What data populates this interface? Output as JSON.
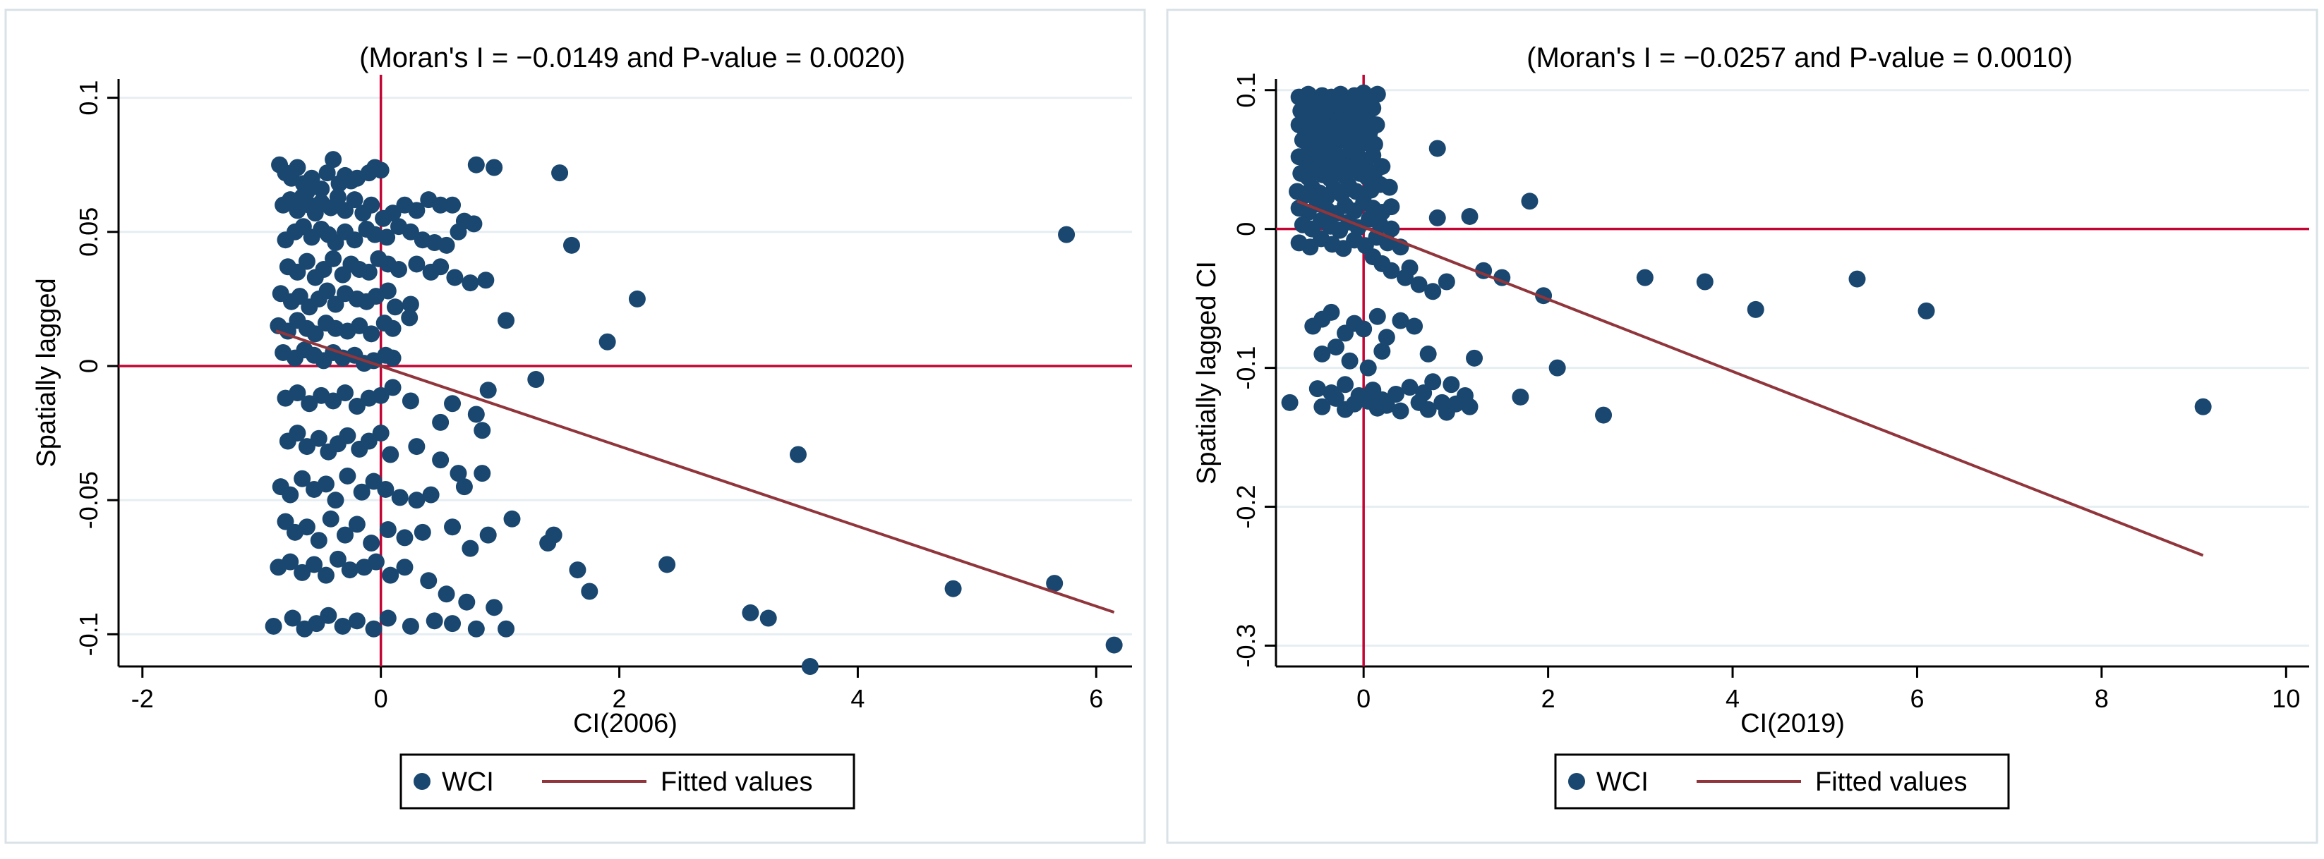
{
  "colors": {
    "marker": "#1a476f",
    "fit_line": "#90353b",
    "ref_line": "#c10534",
    "grid": "#e6eef2",
    "frame": "#000000",
    "panel_border": "#d9e2e7"
  },
  "chart_data": [
    {
      "type": "scatter",
      "title": "(Moran's I = −0.0149 and P-value = 0.0020)",
      "xlabel": "CI(2006)",
      "ylabel": "Spatially lagged",
      "xlim": [
        -2.2,
        6.3
      ],
      "ylim": [
        -0.112,
        0.107
      ],
      "xticks": [
        -2,
        0,
        2,
        4,
        6
      ],
      "xtick_labels": [
        "-2",
        "0",
        "2",
        "4",
        "6"
      ],
      "yticks": [
        -0.1,
        -0.05,
        0,
        0.05,
        0.1
      ],
      "ytick_labels": [
        "-0.1",
        "-0.05",
        "0",
        "0.05",
        "0.1"
      ],
      "grid": true,
      "ref_lines": {
        "x": 0,
        "y": 0
      },
      "legend": {
        "position": "bottom",
        "entries": [
          "WCI",
          "Fitted values"
        ]
      },
      "fit": {
        "name": "Fitted values",
        "x": [
          -0.88,
          6.15
        ],
        "y": [
          0.0131,
          -0.0918
        ]
      },
      "series": [
        {
          "name": "WCI",
          "x": [
            -0.85,
            -0.8,
            -0.75,
            -0.7,
            -0.65,
            -0.62,
            -0.58,
            -0.5,
            -0.45,
            -0.4,
            -0.35,
            -0.3,
            -0.25,
            -0.2,
            -0.1,
            -0.05,
            0.0,
            -0.82,
            -0.76,
            -0.7,
            -0.66,
            -0.6,
            -0.55,
            -0.5,
            -0.42,
            -0.36,
            -0.3,
            -0.22,
            -0.15,
            -0.08,
            0.02,
            0.1,
            0.2,
            0.3,
            0.4,
            0.5,
            0.6,
            0.7,
            -0.8,
            -0.72,
            -0.65,
            -0.58,
            -0.5,
            -0.44,
            -0.38,
            -0.3,
            -0.22,
            -0.12,
            -0.05,
            0.05,
            0.15,
            0.25,
            0.35,
            0.45,
            0.55,
            0.65,
            0.78,
            -0.78,
            -0.7,
            -0.62,
            -0.55,
            -0.48,
            -0.4,
            -0.32,
            -0.25,
            -0.18,
            -0.1,
            -0.02,
            0.06,
            0.15,
            0.3,
            0.42,
            0.5,
            0.62,
            0.75,
            0.88,
            -0.84,
            -0.75,
            -0.68,
            -0.6,
            -0.52,
            -0.45,
            -0.38,
            -0.3,
            -0.2,
            -0.12,
            -0.04,
            0.06,
            0.12,
            0.25,
            -0.86,
            -0.78,
            -0.7,
            -0.62,
            -0.55,
            -0.46,
            -0.38,
            -0.28,
            -0.18,
            -0.08,
            0.03,
            0.1,
            0.24,
            -0.82,
            -0.72,
            -0.64,
            -0.56,
            -0.48,
            -0.4,
            -0.32,
            -0.22,
            -0.14,
            -0.06,
            0.04,
            0.1,
            -0.8,
            -0.7,
            -0.6,
            -0.5,
            -0.4,
            -0.3,
            -0.2,
            -0.1,
            0.0,
            0.1,
            0.25,
            0.5,
            0.6,
            0.8,
            0.9,
            -0.78,
            -0.7,
            -0.62,
            -0.52,
            -0.44,
            -0.36,
            -0.28,
            -0.18,
            -0.1,
            0.0,
            0.08,
            0.3,
            0.5,
            0.65,
            0.85,
            -0.84,
            -0.76,
            -0.66,
            -0.56,
            -0.46,
            -0.38,
            -0.28,
            -0.16,
            -0.06,
            0.04,
            0.16,
            0.3,
            0.42,
            0.7,
            0.85,
            -0.8,
            -0.72,
            -0.62,
            -0.52,
            -0.42,
            -0.3,
            -0.2,
            -0.08,
            0.06,
            0.2,
            0.35,
            0.6,
            0.75,
            0.9,
            1.1,
            -0.86,
            -0.76,
            -0.66,
            -0.56,
            -0.46,
            -0.36,
            -0.26,
            -0.14,
            -0.04,
            0.08,
            0.2,
            0.4,
            0.55,
            0.72,
            0.95,
            -0.9,
            -0.74,
            -0.64,
            -0.54,
            -0.44,
            -0.32,
            -0.2,
            -0.06,
            0.06,
            0.25,
            0.45,
            0.6,
            0.8,
            1.05,
            0.8,
            0.95,
            1.5,
            1.6,
            2.15,
            1.9,
            1.05,
            1.3,
            5.75,
            3.5,
            1.45,
            1.4,
            1.65,
            1.75,
            2.4,
            4.8,
            5.65,
            3.1,
            3.25,
            6.15,
            3.6
          ],
          "y": [
            0.075,
            0.072,
            0.07,
            0.074,
            0.068,
            0.065,
            0.07,
            0.066,
            0.072,
            0.077,
            0.068,
            0.071,
            0.069,
            0.07,
            0.072,
            0.074,
            0.073,
            0.06,
            0.062,
            0.058,
            0.063,
            0.06,
            0.057,
            0.061,
            0.059,
            0.063,
            0.058,
            0.062,
            0.057,
            0.06,
            0.055,
            0.057,
            0.06,
            0.058,
            0.062,
            0.06,
            0.06,
            0.054,
            0.047,
            0.05,
            0.052,
            0.048,
            0.051,
            0.049,
            0.046,
            0.05,
            0.047,
            0.051,
            0.049,
            0.048,
            0.052,
            0.05,
            0.047,
            0.046,
            0.045,
            0.05,
            0.053,
            0.037,
            0.035,
            0.039,
            0.033,
            0.036,
            0.04,
            0.034,
            0.038,
            0.036,
            0.035,
            0.04,
            0.038,
            0.036,
            0.038,
            0.035,
            0.037,
            0.033,
            0.031,
            0.032,
            0.027,
            0.024,
            0.026,
            0.022,
            0.025,
            0.028,
            0.023,
            0.027,
            0.025,
            0.024,
            0.026,
            0.028,
            0.022,
            0.023,
            0.015,
            0.013,
            0.017,
            0.014,
            0.012,
            0.016,
            0.014,
            0.013,
            0.015,
            0.012,
            0.016,
            0.014,
            0.018,
            0.005,
            0.003,
            0.006,
            0.004,
            0.002,
            0.005,
            0.003,
            0.004,
            0.001,
            0.002,
            0.004,
            0.003,
            -0.012,
            -0.01,
            -0.014,
            -0.011,
            -0.013,
            -0.01,
            -0.015,
            -0.012,
            -0.011,
            -0.008,
            -0.013,
            -0.021,
            -0.014,
            -0.018,
            -0.009,
            -0.028,
            -0.025,
            -0.03,
            -0.027,
            -0.032,
            -0.029,
            -0.026,
            -0.031,
            -0.028,
            -0.025,
            -0.033,
            -0.03,
            -0.035,
            -0.04,
            -0.024,
            -0.045,
            -0.048,
            -0.042,
            -0.046,
            -0.044,
            -0.05,
            -0.041,
            -0.047,
            -0.043,
            -0.046,
            -0.049,
            -0.05,
            -0.048,
            -0.045,
            -0.04,
            -0.058,
            -0.062,
            -0.06,
            -0.065,
            -0.057,
            -0.063,
            -0.059,
            -0.066,
            -0.061,
            -0.064,
            -0.062,
            -0.06,
            -0.068,
            -0.063,
            -0.057,
            -0.075,
            -0.073,
            -0.077,
            -0.074,
            -0.078,
            -0.072,
            -0.076,
            -0.075,
            -0.073,
            -0.078,
            -0.075,
            -0.08,
            -0.085,
            -0.088,
            -0.09,
            -0.097,
            -0.094,
            -0.098,
            -0.096,
            -0.093,
            -0.097,
            -0.095,
            -0.098,
            -0.094,
            -0.097,
            -0.095,
            -0.096,
            -0.098,
            -0.098,
            0.075,
            0.074,
            0.072,
            0.045,
            0.025,
            0.009,
            0.017,
            -0.005,
            0.049,
            -0.033,
            -0.063,
            -0.066,
            -0.076,
            -0.084,
            -0.074,
            -0.083,
            -0.081,
            -0.092,
            -0.094,
            -0.104,
            -0.112
          ]
        }
      ]
    },
    {
      "type": "scatter",
      "title": "(Moran's I = −0.0257 and P-value = 0.0010)",
      "xlabel": "CI(2019)",
      "ylabel": "Spatially lagged CI",
      "xlim": [
        -0.95,
        10.25
      ],
      "ylim": [
        -0.315,
        0.108
      ],
      "xticks": [
        0,
        2,
        4,
        6,
        8,
        10
      ],
      "xtick_labels": [
        "0",
        "2",
        "4",
        "6",
        "8",
        "10"
      ],
      "yticks": [
        -0.3,
        -0.2,
        -0.1,
        0,
        0.1
      ],
      "ytick_labels": [
        "-0.3",
        "-0.2",
        "-0.1",
        "0",
        "0.1"
      ],
      "grid": true,
      "ref_lines": {
        "x": 0,
        "y": 0
      },
      "legend": {
        "position": "bottom",
        "entries": [
          "WCI",
          "Fitted values"
        ]
      },
      "fit": {
        "name": "Fitted values",
        "x": [
          -0.72,
          9.1
        ],
        "y": [
          0.02,
          -0.235
        ]
      },
      "series": [
        {
          "name": "WCI",
          "x": [
            -0.7,
            -0.65,
            -0.6,
            -0.55,
            -0.5,
            -0.45,
            -0.4,
            -0.35,
            -0.3,
            -0.25,
            -0.2,
            -0.15,
            -0.1,
            -0.05,
            0.0,
            0.05,
            0.15,
            -0.68,
            -0.62,
            -0.56,
            -0.5,
            -0.44,
            -0.38,
            -0.32,
            -0.26,
            -0.2,
            -0.14,
            -0.08,
            -0.02,
            0.04,
            0.1,
            -0.7,
            -0.64,
            -0.58,
            -0.52,
            -0.46,
            -0.4,
            -0.34,
            -0.28,
            -0.22,
            -0.16,
            -0.1,
            -0.04,
            0.02,
            0.08,
            0.14,
            -0.66,
            -0.6,
            -0.54,
            -0.48,
            -0.42,
            -0.36,
            -0.3,
            -0.24,
            -0.18,
            -0.12,
            -0.06,
            0.0,
            0.06,
            0.12,
            -0.7,
            -0.62,
            -0.54,
            -0.46,
            -0.38,
            -0.3,
            -0.22,
            -0.14,
            -0.06,
            0.02,
            0.1,
            -0.68,
            -0.6,
            -0.52,
            -0.44,
            -0.36,
            -0.28,
            -0.2,
            -0.12,
            -0.04,
            0.04,
            0.12,
            0.2,
            -0.72,
            -0.64,
            -0.56,
            -0.48,
            -0.4,
            -0.32,
            -0.24,
            -0.16,
            -0.08,
            0.0,
            0.08,
            0.18,
            0.28,
            -0.7,
            -0.6,
            -0.5,
            -0.4,
            -0.3,
            -0.2,
            -0.1,
            0.0,
            0.1,
            0.2,
            0.3,
            -0.66,
            -0.56,
            -0.46,
            -0.36,
            -0.26,
            -0.16,
            -0.06,
            0.06,
            0.18,
            0.3,
            -0.7,
            -0.58,
            -0.46,
            -0.34,
            -0.22,
            -0.1,
            0.02,
            0.14,
            0.26,
            0.4,
            0.1,
            0.2,
            0.3,
            0.45,
            0.5,
            0.6,
            0.75,
            0.9,
            -0.55,
            -0.45,
            -0.35,
            -0.2,
            -0.1,
            0.0,
            0.15,
            0.25,
            0.4,
            0.55,
            0.7,
            -0.45,
            -0.3,
            -0.15,
            0.05,
            0.2,
            -0.5,
            -0.35,
            -0.2,
            -0.05,
            0.1,
            0.2,
            0.35,
            0.5,
            0.65,
            0.75,
            0.85,
            0.95,
            1.1,
            -0.8,
            -0.45,
            -0.3,
            -0.2,
            -0.1,
            0.05,
            0.15,
            0.25,
            0.4,
            0.6,
            0.7,
            0.9,
            1.0,
            1.15,
            0.8,
            0.8,
            1.15,
            1.3,
            1.5,
            1.8,
            1.95,
            3.05,
            3.7,
            4.25,
            5.35,
            6.1,
            2.1,
            1.2,
            1.7,
            2.6,
            9.1
          ],
          "y": [
            0.095,
            0.092,
            0.097,
            0.094,
            0.09,
            0.096,
            0.093,
            0.095,
            0.091,
            0.097,
            0.094,
            0.092,
            0.096,
            0.093,
            0.098,
            0.095,
            0.097,
            0.085,
            0.082,
            0.087,
            0.084,
            0.081,
            0.086,
            0.083,
            0.088,
            0.085,
            0.082,
            0.086,
            0.084,
            0.08,
            0.087,
            0.075,
            0.072,
            0.077,
            0.074,
            0.071,
            0.076,
            0.073,
            0.078,
            0.074,
            0.071,
            0.076,
            0.073,
            0.079,
            0.072,
            0.075,
            0.064,
            0.061,
            0.066,
            0.063,
            0.06,
            0.065,
            0.062,
            0.067,
            0.063,
            0.06,
            0.065,
            0.062,
            0.068,
            0.061,
            0.052,
            0.049,
            0.055,
            0.051,
            0.048,
            0.054,
            0.05,
            0.056,
            0.052,
            0.049,
            0.053,
            0.04,
            0.037,
            0.043,
            0.039,
            0.036,
            0.042,
            0.038,
            0.044,
            0.04,
            0.037,
            0.041,
            0.045,
            0.027,
            0.024,
            0.03,
            0.026,
            0.023,
            0.029,
            0.025,
            0.031,
            0.027,
            0.024,
            0.028,
            0.032,
            0.03,
            0.015,
            0.012,
            0.018,
            0.014,
            0.011,
            0.017,
            0.013,
            0.019,
            0.015,
            0.012,
            0.016,
            0.003,
            0.0,
            0.006,
            0.002,
            -0.001,
            0.005,
            0.001,
            0.007,
            0.003,
            0.0,
            -0.01,
            -0.013,
            -0.007,
            -0.011,
            -0.014,
            -0.008,
            -0.012,
            -0.006,
            -0.01,
            -0.013,
            -0.02,
            -0.025,
            -0.03,
            -0.035,
            -0.028,
            -0.04,
            -0.045,
            -0.038,
            -0.07,
            -0.065,
            -0.06,
            -0.075,
            -0.068,
            -0.072,
            -0.063,
            -0.078,
            -0.066,
            -0.07,
            -0.09,
            -0.09,
            -0.085,
            -0.095,
            -0.1,
            -0.088,
            -0.115,
            -0.118,
            -0.112,
            -0.12,
            -0.116,
            -0.123,
            -0.119,
            -0.114,
            -0.118,
            -0.11,
            -0.125,
            -0.112,
            -0.12,
            -0.125,
            -0.128,
            -0.122,
            -0.13,
            -0.126,
            -0.124,
            -0.129,
            -0.127,
            -0.131,
            -0.125,
            -0.13,
            -0.132,
            -0.126,
            -0.128,
            0.058,
            0.008,
            0.009,
            -0.03,
            -0.035,
            0.02,
            -0.048,
            -0.035,
            -0.038,
            -0.058,
            -0.036,
            -0.059,
            -0.1,
            -0.093,
            -0.121,
            -0.134,
            -0.128
          ]
        }
      ]
    }
  ]
}
